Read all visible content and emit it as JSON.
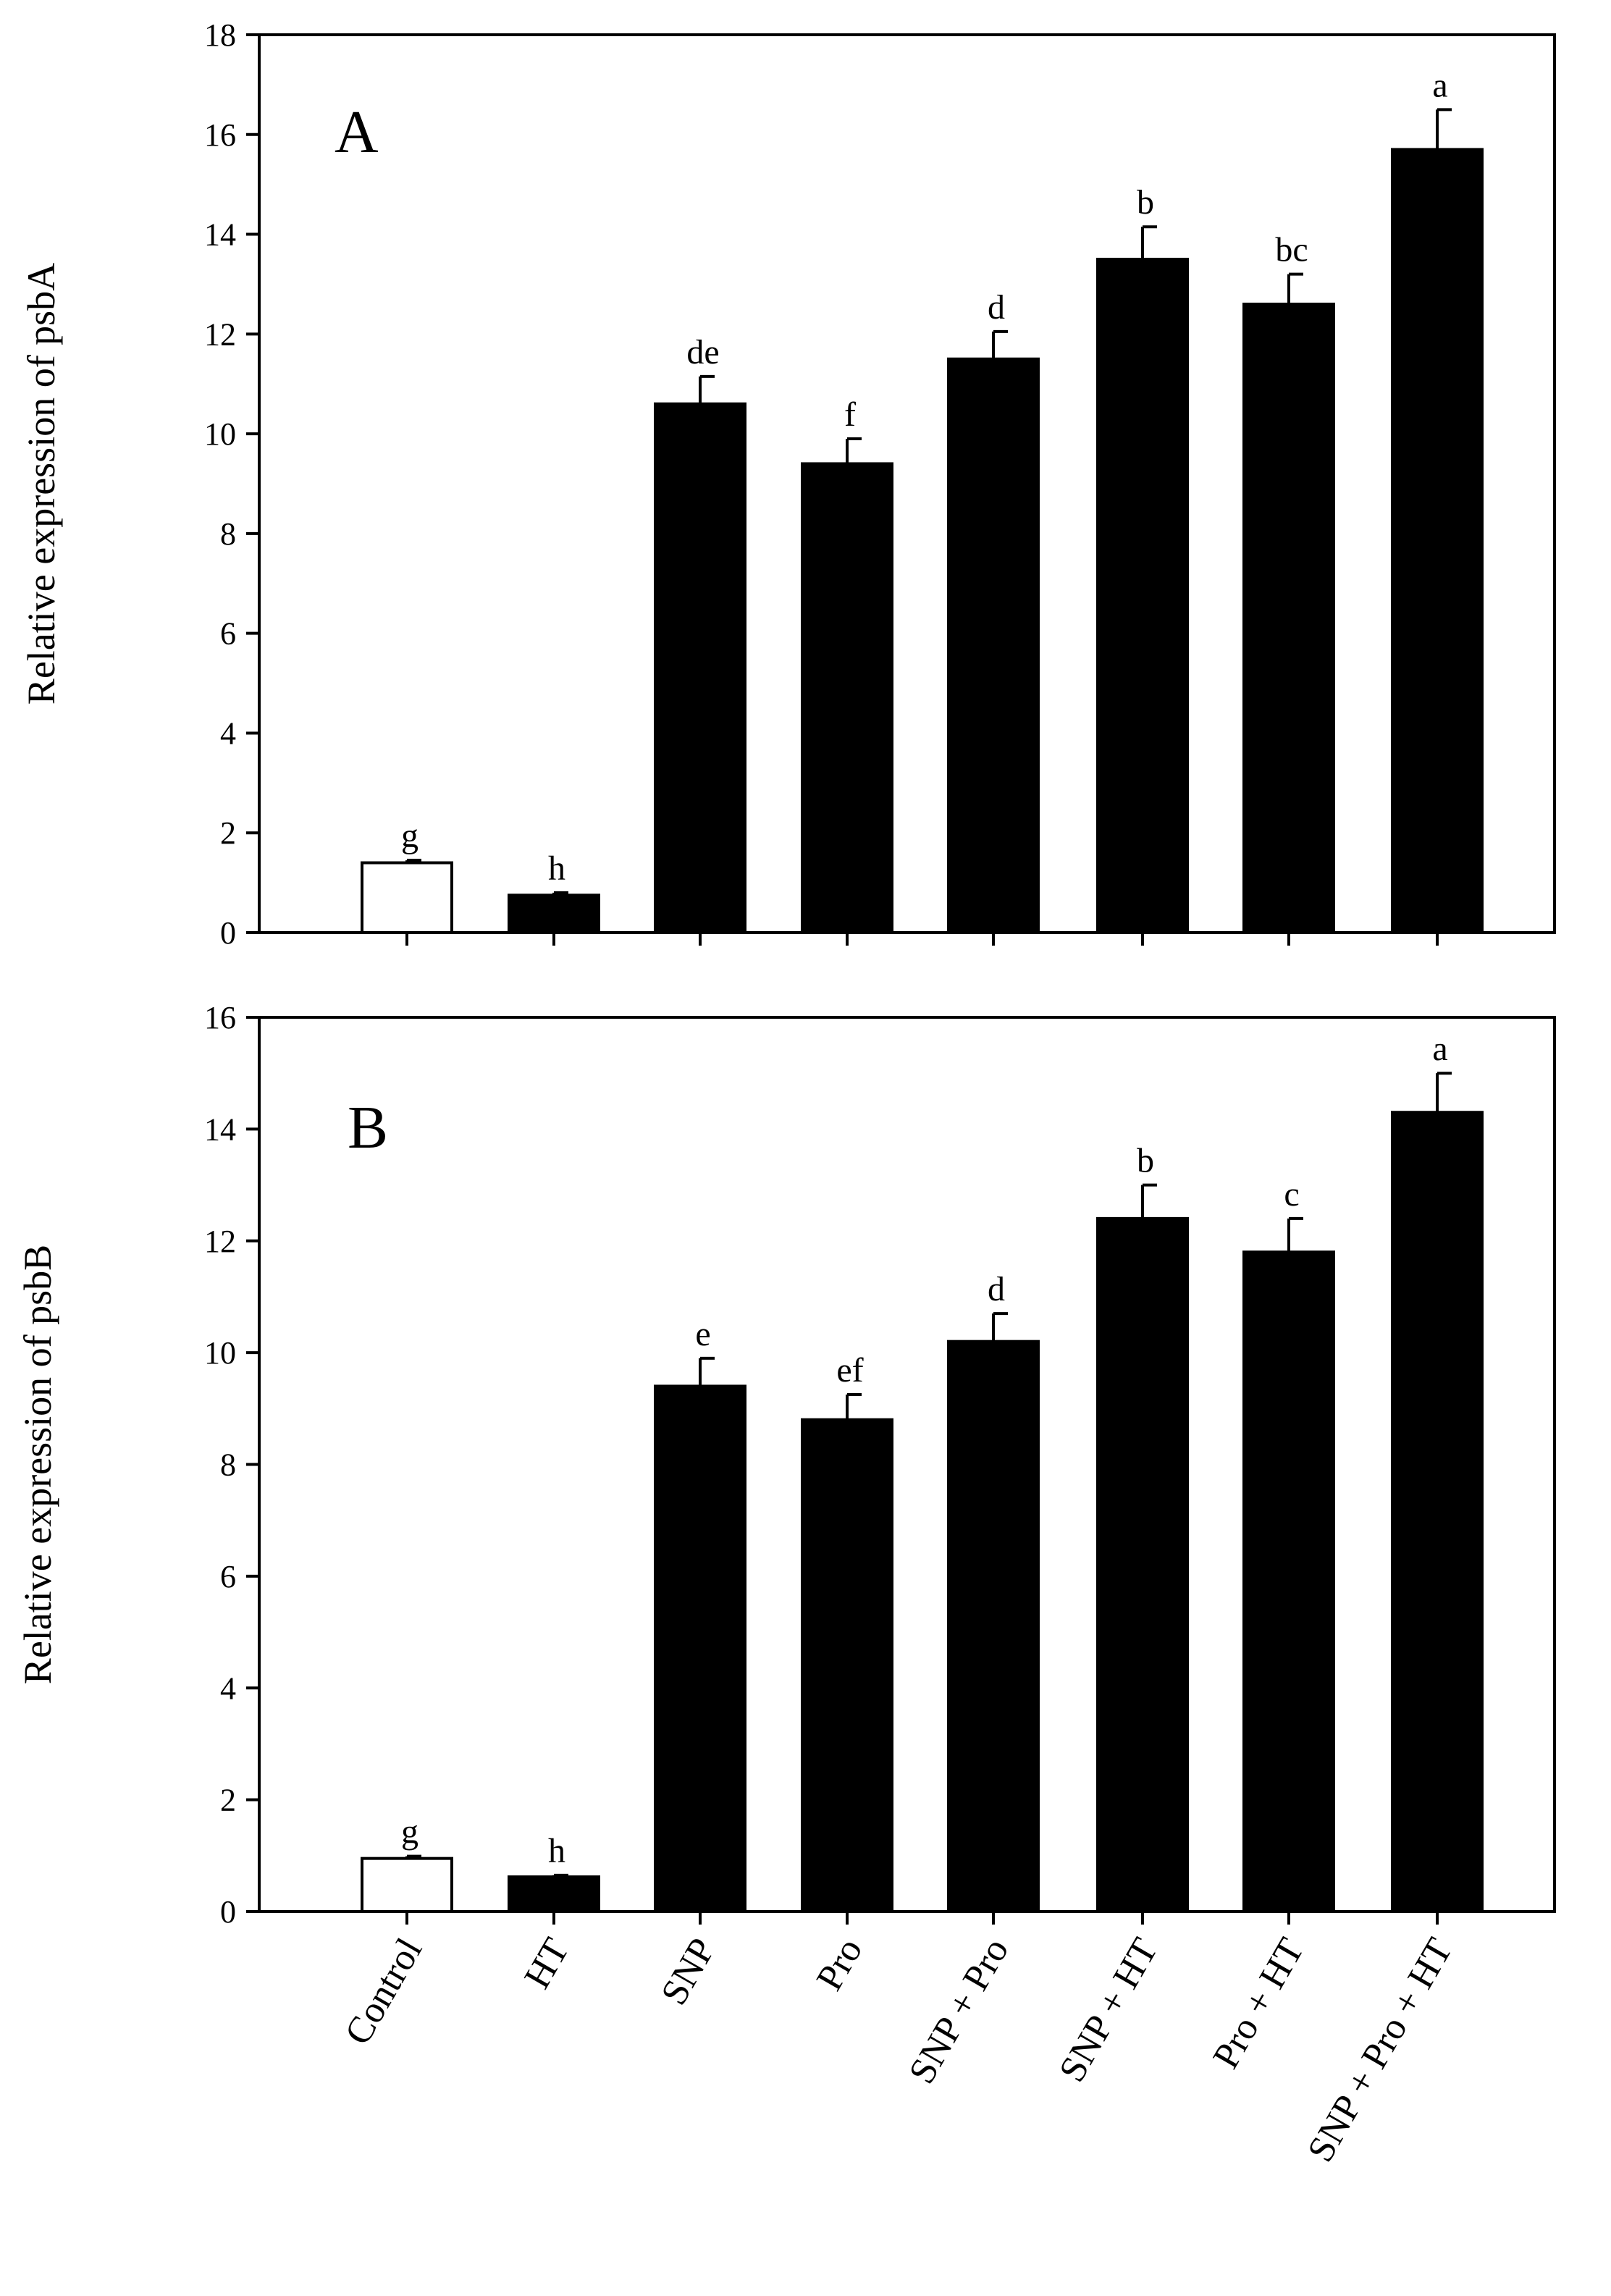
{
  "chart_data": [
    {
      "type": "bar",
      "panel": "A",
      "ylabel_prefix": "Relative expression of ",
      "ylabel_gene": "psbA",
      "ylim": [
        0,
        18
      ],
      "yticks": [
        "0",
        "2",
        "4",
        "6",
        "8",
        "10",
        "12",
        "14",
        "16",
        "18"
      ],
      "categories": [
        "Control",
        "HT",
        "SNP",
        "Pro",
        "SNP + Pro",
        "SNP + HT",
        "Pro + HT",
        "SNP + Pro + HT"
      ],
      "values": [
        1.4,
        0.75,
        10.6,
        9.4,
        11.5,
        13.5,
        12.6,
        15.7
      ],
      "errors": [
        0.05,
        0.05,
        0.55,
        0.5,
        0.55,
        0.65,
        0.6,
        0.8
      ],
      "significance": [
        "g",
        "h",
        "de",
        "f",
        "d",
        "b",
        "bc",
        "a"
      ],
      "bar_colors": [
        "#ffffff",
        "#000000",
        "#000000",
        "#000000",
        "#000000",
        "#000000",
        "#000000",
        "#000000"
      ]
    },
    {
      "type": "bar",
      "panel": "B",
      "ylabel_prefix": "Relative expression of ",
      "ylabel_gene": "psbB",
      "ylim": [
        0,
        16
      ],
      "yticks": [
        "0",
        "2",
        "4",
        "6",
        "8",
        "10",
        "12",
        "14",
        "16"
      ],
      "categories": [
        "Control",
        "HT",
        "SNP",
        "Pro",
        "SNP + Pro",
        "SNP + HT",
        "Pro + HT",
        "SNP + Pro + HT"
      ],
      "values": [
        0.95,
        0.62,
        9.4,
        8.8,
        10.2,
        12.4,
        11.8,
        14.3
      ],
      "errors": [
        0.04,
        0.03,
        0.5,
        0.45,
        0.5,
        0.6,
        0.6,
        0.7
      ],
      "significance": [
        "g",
        "h",
        "e",
        "ef",
        "d",
        "b",
        "c",
        "a"
      ],
      "bar_colors": [
        "#ffffff",
        "#000000",
        "#000000",
        "#000000",
        "#000000",
        "#000000",
        "#000000",
        "#000000"
      ]
    }
  ],
  "x_category_labels": [
    "Control",
    "HT",
    "SNP",
    "Pro",
    "SNP + Pro",
    "SNP + HT",
    "Pro + HT",
    "SNP + Pro + HT"
  ]
}
